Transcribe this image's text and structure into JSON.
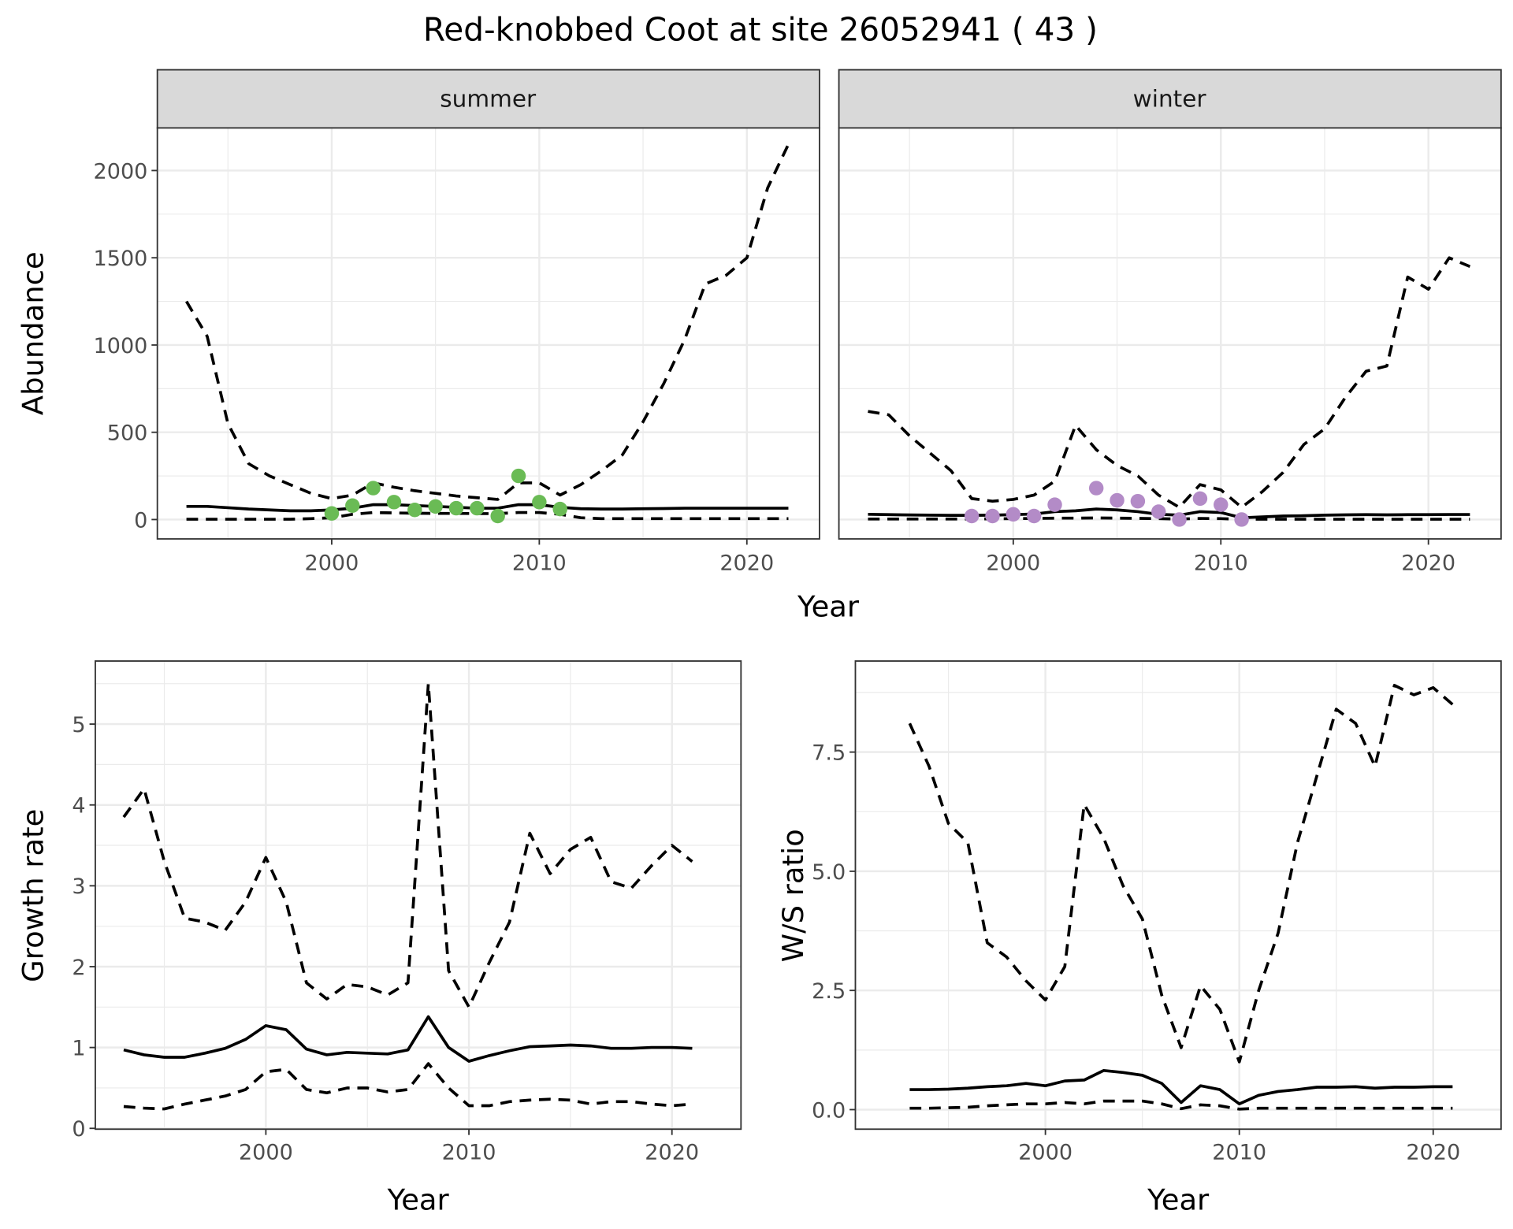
{
  "title": "Red-knobbed Coot at site 26052941 ( 43 )",
  "colors": {
    "summer": "#6abb55",
    "winter": "#b38bc7",
    "line": "#000000",
    "grid": "#ebebeb",
    "strip": "#d9d9d9"
  },
  "chart_data": [
    {
      "type": "line",
      "facet": "summer",
      "ylabel": "Abundance",
      "xlabel": "Year",
      "xlim": [
        1991.6,
        2023.5
      ],
      "ylim": [
        -111,
        2244
      ],
      "xticks": [
        2000,
        2010,
        2020
      ],
      "yticks": [
        0,
        500,
        1000,
        1500,
        2000
      ],
      "grid": true,
      "x": [
        1993,
        1994,
        1995,
        1996,
        1997,
        1998,
        1999,
        2000,
        2001,
        2002,
        2003,
        2004,
        2005,
        2006,
        2007,
        2008,
        2009,
        2010,
        2011,
        2012,
        2013,
        2014,
        2015,
        2016,
        2017,
        2018,
        2019,
        2020,
        2021,
        2022
      ],
      "series": [
        {
          "style": "dashed",
          "values": [
            1250,
            1050,
            550,
            320,
            250,
            200,
            150,
            120,
            140,
            210,
            185,
            165,
            150,
            135,
            125,
            115,
            210,
            210,
            140,
            200,
            280,
            370,
            560,
            780,
            1030,
            1350,
            1400,
            1500,
            1900,
            2150
          ]
        },
        {
          "style": "solid",
          "values": [
            75,
            75,
            68,
            60,
            55,
            50,
            50,
            55,
            65,
            85,
            85,
            80,
            75,
            70,
            65,
            65,
            85,
            85,
            70,
            62,
            60,
            60,
            62,
            63,
            65,
            65,
            65,
            65,
            65,
            65
          ]
        },
        {
          "style": "dashed",
          "values": [
            2,
            2,
            2,
            2,
            2,
            2,
            5,
            10,
            30,
            40,
            38,
            36,
            35,
            35,
            34,
            34,
            40,
            40,
            30,
            10,
            5,
            5,
            5,
            5,
            5,
            5,
            5,
            5,
            5,
            5
          ]
        }
      ],
      "points": {
        "x": [
          2000,
          2001,
          2002,
          2003,
          2004,
          2005,
          2006,
          2007,
          2008,
          2009,
          2010,
          2011
        ],
        "y": [
          35,
          80,
          180,
          100,
          55,
          75,
          65,
          65,
          20,
          250,
          100,
          60
        ]
      }
    },
    {
      "type": "line",
      "facet": "winter",
      "xlabel": "Year",
      "xlim": [
        1991.6,
        2023.5
      ],
      "ylim": [
        -111,
        2244
      ],
      "xticks": [
        2000,
        2010,
        2020
      ],
      "yticks": [
        0,
        500,
        1000,
        1500,
        2000
      ],
      "grid": true,
      "x": [
        1993,
        1994,
        1995,
        1996,
        1997,
        1998,
        1999,
        2000,
        2001,
        2002,
        2003,
        2004,
        2005,
        2006,
        2007,
        2008,
        2009,
        2010,
        2011,
        2012,
        2013,
        2014,
        2015,
        2016,
        2017,
        2018,
        2019,
        2020,
        2021,
        2022
      ],
      "series": [
        {
          "style": "dashed",
          "values": [
            620,
            600,
            480,
            380,
            280,
            120,
            105,
            115,
            140,
            220,
            540,
            400,
            310,
            250,
            140,
            70,
            200,
            170,
            70,
            160,
            270,
            430,
            520,
            700,
            850,
            880,
            1390,
            1320,
            1500,
            1450
          ]
        },
        {
          "style": "solid",
          "values": [
            30,
            28,
            26,
            25,
            24,
            24,
            25,
            28,
            32,
            45,
            50,
            60,
            55,
            45,
            30,
            25,
            45,
            40,
            10,
            15,
            20,
            22,
            25,
            27,
            28,
            27,
            28,
            28,
            29,
            29
          ]
        },
        {
          "style": "dashed",
          "values": [
            3,
            3,
            3,
            3,
            3,
            3,
            4,
            5,
            6,
            8,
            8,
            9,
            8,
            7,
            5,
            3,
            6,
            5,
            2,
            2,
            2,
            2,
            2,
            2,
            2,
            2,
            2,
            2,
            2,
            2
          ]
        }
      ],
      "points": {
        "x": [
          1998,
          1999,
          2000,
          2001,
          2002,
          2004,
          2005,
          2006,
          2007,
          2008,
          2009,
          2010,
          2011
        ],
        "y": [
          20,
          20,
          30,
          20,
          85,
          180,
          110,
          105,
          45,
          0,
          120,
          85,
          0
        ]
      }
    },
    {
      "type": "line",
      "ylabel": "Growth rate",
      "xlabel": "Year",
      "xlim": [
        1991.6,
        2023.4
      ],
      "ylim": [
        -0.01,
        5.78
      ],
      "xticks": [
        2000,
        2010,
        2020
      ],
      "yticks": [
        0,
        1,
        2,
        3,
        4,
        5
      ],
      "grid": true,
      "x": [
        1993,
        1994,
        1995,
        1996,
        1997,
        1998,
        1999,
        2000,
        2001,
        2002,
        2003,
        2004,
        2005,
        2006,
        2007,
        2008,
        2009,
        2010,
        2011,
        2012,
        2013,
        2014,
        2015,
        2016,
        2017,
        2018,
        2019,
        2020,
        2021
      ],
      "series": [
        {
          "style": "dashed",
          "values": [
            3.85,
            4.2,
            3.3,
            2.6,
            2.55,
            2.45,
            2.8,
            3.35,
            2.8,
            1.8,
            1.6,
            1.78,
            1.75,
            1.65,
            1.8,
            5.5,
            1.95,
            1.5,
            2.05,
            2.55,
            3.65,
            3.15,
            3.45,
            3.6,
            3.05,
            2.97,
            3.25,
            3.5,
            3.3
          ]
        },
        {
          "style": "solid",
          "values": [
            0.97,
            0.91,
            0.88,
            0.88,
            0.93,
            0.99,
            1.1,
            1.27,
            1.22,
            0.98,
            0.91,
            0.94,
            0.93,
            0.92,
            0.97,
            1.38,
            1.0,
            0.83,
            0.9,
            0.96,
            1.01,
            1.02,
            1.03,
            1.02,
            0.99,
            0.99,
            1.0,
            1.0,
            0.99
          ]
        },
        {
          "style": "dashed",
          "values": [
            0.27,
            0.25,
            0.24,
            0.3,
            0.35,
            0.4,
            0.48,
            0.7,
            0.73,
            0.48,
            0.44,
            0.5,
            0.5,
            0.45,
            0.48,
            0.8,
            0.5,
            0.28,
            0.28,
            0.33,
            0.35,
            0.36,
            0.35,
            0.3,
            0.33,
            0.33,
            0.3,
            0.28,
            0.3
          ]
        }
      ]
    },
    {
      "type": "line",
      "ylabel": "W/S ratio",
      "xlabel": "Year",
      "xlim": [
        1990.2,
        2023.5
      ],
      "ylim": [
        -0.41,
        9.41
      ],
      "xticks": [
        2000,
        2010,
        2020
      ],
      "yticks": [
        0.0,
        2.5,
        5.0,
        7.5
      ],
      "ytick_labels": [
        "0.0",
        "2.5",
        "5.0",
        "7.5"
      ],
      "grid": true,
      "x": [
        1993,
        1994,
        1995,
        1996,
        1997,
        1998,
        1999,
        2000,
        2001,
        2002,
        2003,
        2004,
        2005,
        2006,
        2007,
        2008,
        2009,
        2010,
        2011,
        2012,
        2013,
        2014,
        2015,
        2016,
        2017,
        2018,
        2019,
        2020,
        2021
      ],
      "series": [
        {
          "style": "dashed",
          "values": [
            8.1,
            7.2,
            6.0,
            5.6,
            3.5,
            3.2,
            2.7,
            2.3,
            3.0,
            6.4,
            5.7,
            4.7,
            4.0,
            2.4,
            1.3,
            2.6,
            2.1,
            1.0,
            2.5,
            3.7,
            5.6,
            7.0,
            8.4,
            8.1,
            7.2,
            8.9,
            8.7,
            8.85,
            8.5
          ]
        },
        {
          "style": "solid",
          "values": [
            0.42,
            0.42,
            0.43,
            0.45,
            0.48,
            0.5,
            0.55,
            0.5,
            0.6,
            0.62,
            0.82,
            0.78,
            0.72,
            0.55,
            0.15,
            0.5,
            0.42,
            0.12,
            0.3,
            0.38,
            0.42,
            0.47,
            0.47,
            0.48,
            0.45,
            0.47,
            0.47,
            0.48,
            0.48
          ]
        },
        {
          "style": "dashed",
          "values": [
            0.03,
            0.03,
            0.04,
            0.05,
            0.08,
            0.1,
            0.12,
            0.12,
            0.15,
            0.12,
            0.18,
            0.18,
            0.18,
            0.12,
            0.02,
            0.1,
            0.08,
            0.01,
            0.03,
            0.03,
            0.03,
            0.03,
            0.03,
            0.03,
            0.03,
            0.03,
            0.03,
            0.03,
            0.03
          ]
        }
      ]
    }
  ]
}
